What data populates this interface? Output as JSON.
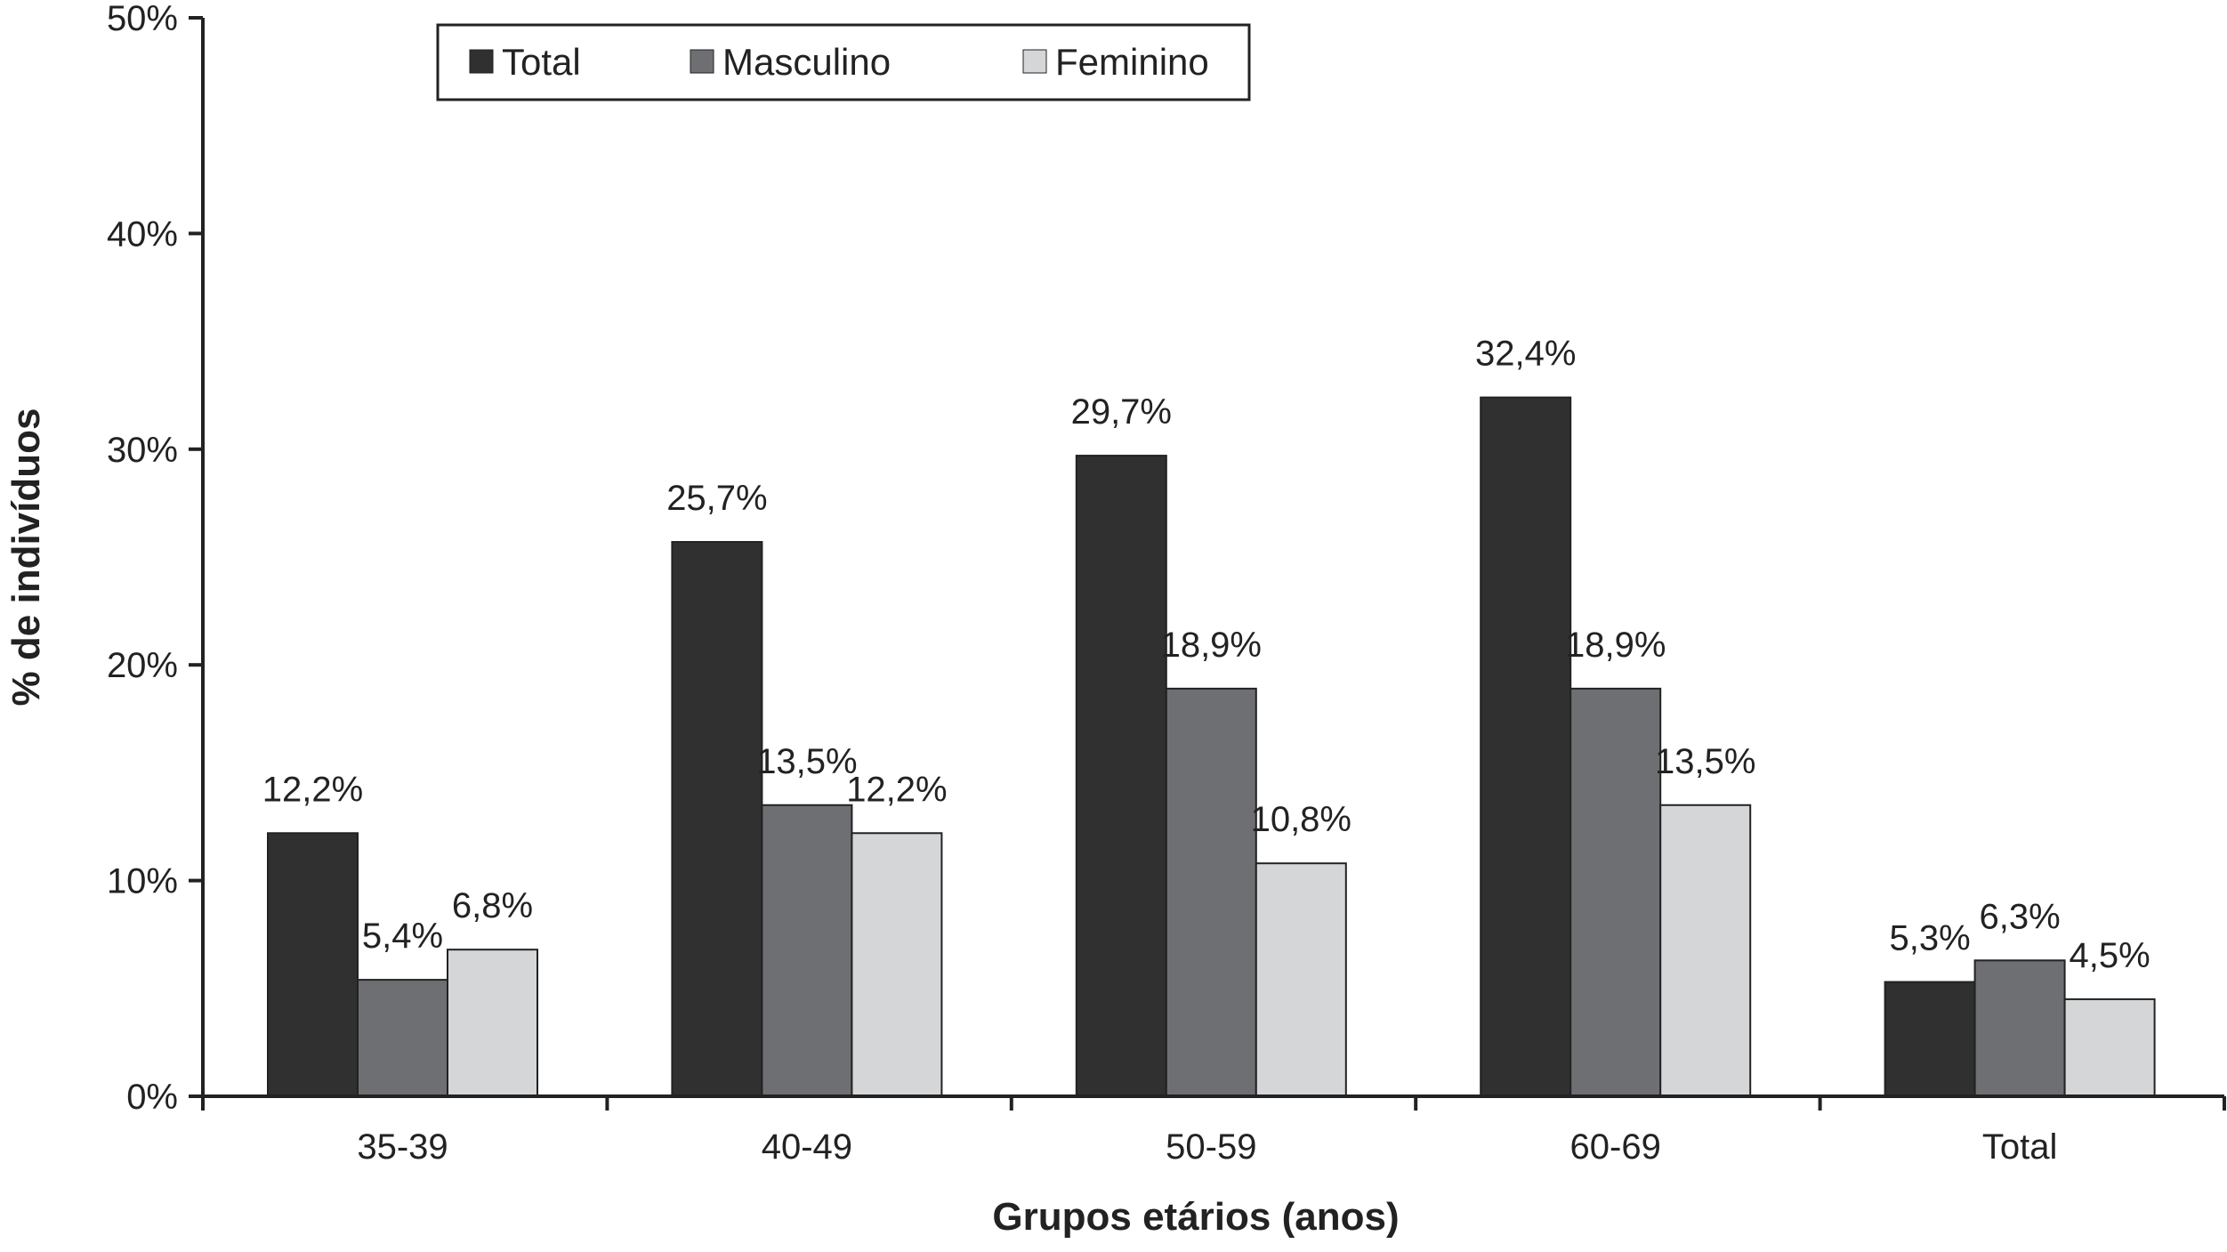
{
  "chart_data": {
    "type": "bar",
    "title": "",
    "xlabel": "Grupos etários (anos)",
    "ylabel": "% de indivíduos",
    "categories": [
      "35-39",
      "40-49",
      "50-59",
      "60-69",
      "Total"
    ],
    "ylim": [
      0,
      50
    ],
    "yticks": [
      0,
      10,
      20,
      30,
      40,
      50
    ],
    "ytick_labels": [
      "0%",
      "10%",
      "20%",
      "30%",
      "40%",
      "50%"
    ],
    "grid": false,
    "legend_position": "top-left",
    "series": [
      {
        "name": "Total",
        "color": "#303030",
        "values": [
          12.2,
          25.7,
          29.7,
          32.4,
          5.3
        ],
        "labels": [
          "12,2%",
          "25,7%",
          "29,7%",
          "32,4%",
          "5,3%"
        ]
      },
      {
        "name": "Masculino",
        "color": "#6e6f72",
        "values": [
          5.4,
          13.5,
          18.9,
          18.9,
          6.3
        ],
        "labels": [
          "5,4%",
          "13,5%",
          "18,9%",
          "18,9%",
          "6,3%"
        ]
      },
      {
        "name": "Feminino",
        "color": "#d5d6d8",
        "values": [
          6.8,
          12.2,
          10.8,
          13.5,
          4.5
        ],
        "labels": [
          "6,8%",
          "12,2%",
          "10,8%",
          "13,5%",
          "4,5%"
        ]
      }
    ]
  }
}
